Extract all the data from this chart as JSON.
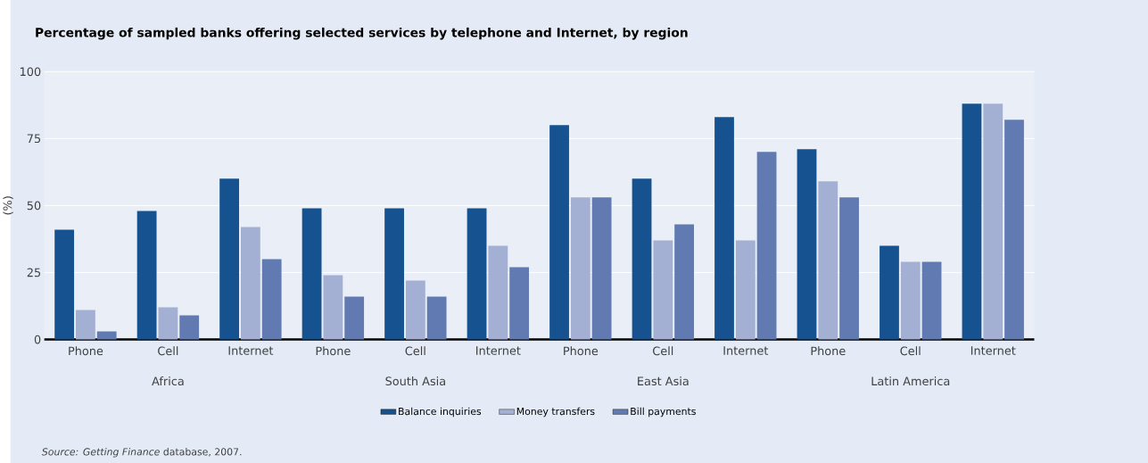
{
  "chart_data": {
    "type": "bar",
    "title": "Percentage of sampled banks offering selected services by telephone and Internet, by region",
    "ylabel": "(%)",
    "categories": [
      "Phone",
      "Cell",
      "Internet",
      "Phone",
      "Cell",
      "Internet",
      "Phone",
      "Cell",
      "Internet",
      "Phone",
      "Cell",
      "Internet"
    ],
    "series": [
      {
        "name": "Balance inquiries",
        "color": "#16528f",
        "values": [
          41,
          48,
          60,
          49,
          49,
          49,
          80,
          60,
          83,
          71,
          35,
          88
        ]
      },
      {
        "name": "Money transfers",
        "color": "#a3b0d3",
        "values": [
          11,
          12,
          42,
          24,
          22,
          35,
          53,
          37,
          37,
          59,
          29,
          88
        ]
      },
      {
        "name": "Bill payments",
        "color": "#617bb2",
        "values": [
          3,
          9,
          30,
          16,
          16,
          27,
          53,
          43,
          70,
          53,
          29,
          82
        ]
      }
    ],
    "ylim": [
      0,
      100
    ],
    "yticks": [
      0,
      25,
      50,
      75,
      100
    ],
    "grid": "y",
    "legend": "bottom",
    "annotations": [
      "Africa",
      "South Asia",
      "East Asia",
      "Latin America",
      "*Source: Getting Finance* database, 2007."
    ]
  }
}
